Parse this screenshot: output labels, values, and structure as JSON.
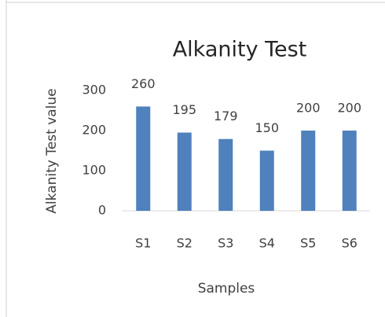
{
  "chart_data": {
    "type": "bar",
    "title": "Alkanity Test",
    "x_label": "Samples",
    "y_label": "Alkanity Test value",
    "categories": [
      "S1",
      "S2",
      "S3",
      "S4",
      "S5",
      "S6"
    ],
    "values": [
      260,
      195,
      179,
      150,
      200,
      200
    ],
    "color": "#4f81bd",
    "ylim": [
      0,
      300
    ],
    "yticks": [
      0,
      100,
      200,
      300
    ],
    "grid": false
  }
}
